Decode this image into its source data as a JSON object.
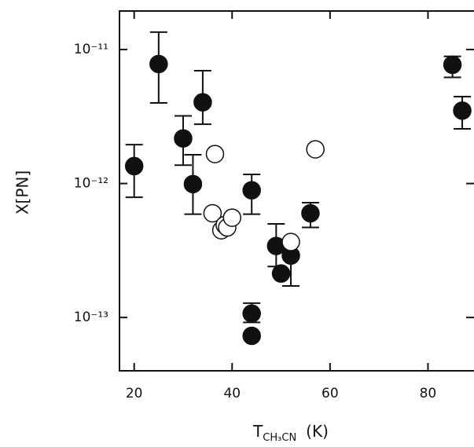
{
  "chart_data": {
    "type": "scatter",
    "ylabel": "X[PN]",
    "xlabel_main": "T",
    "xlabel_sub": "CH₃CN",
    "xlabel_unit": "(K)",
    "xlim": [
      17,
      89.4
    ],
    "ylim": [
      4e-14,
      1.94e-11
    ],
    "ylog": true,
    "xticks": [
      20,
      40,
      60,
      80
    ],
    "yticks": [
      {
        "value": 1e-11,
        "label": "10⁻¹¹"
      },
      {
        "value": 1e-12,
        "label": "10⁻¹²"
      },
      {
        "value": 1e-13,
        "label": "10⁻¹³"
      }
    ],
    "series": [
      {
        "color": "#111111",
        "filled": true,
        "x": [
          20,
          25,
          30,
          32,
          34,
          44,
          44,
          44,
          49,
          50,
          52,
          56,
          85,
          87
        ],
        "values": [
          1.35e-12,
          7.8e-12,
          2.17e-12,
          9.9e-13,
          4.04e-12,
          8.9e-13,
          1.07e-13,
          7.3e-14,
          3.42e-13,
          2.13e-13,
          2.9e-13,
          6e-13,
          7.7e-12,
          3.5e-12
        ],
        "upper": [
          1.95e-12,
          1.35e-11,
          3.2e-12,
          1.64e-12,
          6.95e-12,
          1.17e-12,
          1.28e-13,
          null,
          5e-13,
          null,
          null,
          7.2e-13,
          8.9e-12,
          4.45e-12
        ],
        "lower": [
          7.9e-13,
          4e-12,
          1.37e-12,
          5.9e-13,
          2.77e-12,
          5.9e-13,
          9.2e-14,
          null,
          2.4e-13,
          null,
          1.72e-13,
          4.7e-13,
          6.2e-12,
          2.56e-12
        ]
      },
      {
        "color": "#111111",
        "filled": false,
        "x": [
          36.5,
          36,
          37.8,
          38.5,
          39,
          40,
          52,
          57
        ],
        "values": [
          1.66e-12,
          6e-13,
          4.48e-13,
          4.9e-13,
          4.7e-13,
          5.56e-13,
          3.66e-13,
          1.8e-12
        ]
      }
    ]
  }
}
